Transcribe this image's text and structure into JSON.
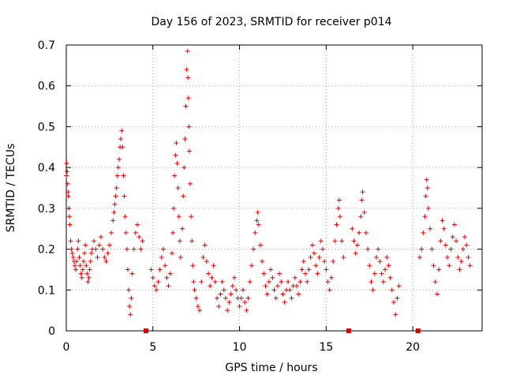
{
  "chart_data": {
    "type": "scatter",
    "title": "Day 156 of 2023, SRMTID for receiver p014",
    "xlabel": "GPS time / hours",
    "ylabel": "SRMTID / TECUs",
    "xlim": [
      0,
      24
    ],
    "ylim": [
      0,
      0.7
    ],
    "xticks": [
      0,
      5,
      10,
      15,
      20
    ],
    "yticks": [
      0,
      0.1,
      0.2,
      0.3,
      0.4,
      0.5,
      0.6,
      0.7
    ],
    "xtick_labels": [
      "0",
      "5",
      "10",
      "15",
      "20"
    ],
    "ytick_labels": [
      "0",
      "0.1",
      "0.2",
      "0.3",
      "0.4",
      "0.5",
      "0.6",
      "0.7"
    ],
    "grid": true,
    "marker": "+",
    "color": "#e00000",
    "marker_markers_on_axis": [
      4.6,
      16.3,
      20.3
    ],
    "series": [
      {
        "name": "SRMTID",
        "points": [
          [
            0.0,
            0.38
          ],
          [
            0.02,
            0.41
          ],
          [
            0.05,
            0.39
          ],
          [
            0.08,
            0.36
          ],
          [
            0.1,
            0.34
          ],
          [
            0.12,
            0.33
          ],
          [
            0.15,
            0.3
          ],
          [
            0.18,
            0.28
          ],
          [
            0.2,
            0.26
          ],
          [
            0.25,
            0.22
          ],
          [
            0.3,
            0.2
          ],
          [
            0.35,
            0.19
          ],
          [
            0.4,
            0.18
          ],
          [
            0.45,
            0.17
          ],
          [
            0.5,
            0.16
          ],
          [
            0.55,
            0.15
          ],
          [
            0.6,
            0.17
          ],
          [
            0.65,
            0.2
          ],
          [
            0.7,
            0.22
          ],
          [
            0.75,
            0.18
          ],
          [
            0.8,
            0.16
          ],
          [
            0.85,
            0.14
          ],
          [
            0.9,
            0.13
          ],
          [
            0.95,
            0.15
          ],
          [
            1.0,
            0.17
          ],
          [
            1.05,
            0.19
          ],
          [
            1.1,
            0.21
          ],
          [
            1.15,
            0.16
          ],
          [
            1.2,
            0.14
          ],
          [
            1.25,
            0.12
          ],
          [
            1.3,
            0.13
          ],
          [
            1.35,
            0.15
          ],
          [
            1.4,
            0.17
          ],
          [
            1.45,
            0.19
          ],
          [
            1.5,
            0.2
          ],
          [
            1.6,
            0.22
          ],
          [
            1.7,
            0.2
          ],
          [
            1.8,
            0.18
          ],
          [
            1.9,
            0.21
          ],
          [
            2.0,
            0.23
          ],
          [
            2.1,
            0.2
          ],
          [
            2.2,
            0.18
          ],
          [
            2.3,
            0.17
          ],
          [
            2.4,
            0.19
          ],
          [
            2.5,
            0.21
          ],
          [
            2.6,
            0.24
          ],
          [
            2.7,
            0.27
          ],
          [
            2.75,
            0.29
          ],
          [
            2.8,
            0.31
          ],
          [
            2.85,
            0.33
          ],
          [
            2.9,
            0.35
          ],
          [
            2.95,
            0.38
          ],
          [
            3.0,
            0.4
          ],
          [
            3.05,
            0.42
          ],
          [
            3.1,
            0.45
          ],
          [
            3.15,
            0.47
          ],
          [
            3.2,
            0.49
          ],
          [
            3.25,
            0.45
          ],
          [
            3.3,
            0.38
          ],
          [
            3.35,
            0.33
          ],
          [
            3.4,
            0.28
          ],
          [
            3.45,
            0.24
          ],
          [
            3.5,
            0.2
          ],
          [
            3.55,
            0.15
          ],
          [
            3.6,
            0.1
          ],
          [
            3.65,
            0.06
          ],
          [
            3.7,
            0.04
          ],
          [
            3.75,
            0.08
          ],
          [
            3.8,
            0.14
          ],
          [
            3.9,
            0.2
          ],
          [
            4.0,
            0.24
          ],
          [
            4.1,
            0.26
          ],
          [
            4.2,
            0.23
          ],
          [
            4.3,
            0.2
          ],
          [
            4.4,
            0.22
          ],
          [
            4.9,
            0.15
          ],
          [
            5.0,
            0.13
          ],
          [
            5.1,
            0.11
          ],
          [
            5.2,
            0.1
          ],
          [
            5.3,
            0.12
          ],
          [
            5.4,
            0.15
          ],
          [
            5.5,
            0.18
          ],
          [
            5.6,
            0.2
          ],
          [
            5.7,
            0.16
          ],
          [
            5.8,
            0.13
          ],
          [
            5.9,
            0.11
          ],
          [
            6.0,
            0.14
          ],
          [
            6.1,
            0.19
          ],
          [
            6.15,
            0.24
          ],
          [
            6.2,
            0.3
          ],
          [
            6.25,
            0.38
          ],
          [
            6.3,
            0.43
          ],
          [
            6.35,
            0.46
          ],
          [
            6.4,
            0.41
          ],
          [
            6.45,
            0.35
          ],
          [
            6.5,
            0.28
          ],
          [
            6.55,
            0.22
          ],
          [
            6.6,
            0.18
          ],
          [
            6.7,
            0.25
          ],
          [
            6.75,
            0.33
          ],
          [
            6.8,
            0.4
          ],
          [
            6.85,
            0.47
          ],
          [
            6.9,
            0.55
          ],
          [
            6.95,
            0.64
          ],
          [
            7.0,
            0.685
          ],
          [
            7.02,
            0.62
          ],
          [
            7.05,
            0.57
          ],
          [
            7.08,
            0.5
          ],
          [
            7.1,
            0.44
          ],
          [
            7.15,
            0.36
          ],
          [
            7.2,
            0.28
          ],
          [
            7.25,
            0.22
          ],
          [
            7.3,
            0.16
          ],
          [
            7.35,
            0.12
          ],
          [
            7.4,
            0.1
          ],
          [
            7.5,
            0.08
          ],
          [
            7.6,
            0.06
          ],
          [
            7.7,
            0.05
          ],
          [
            7.8,
            0.12
          ],
          [
            7.9,
            0.18
          ],
          [
            8.0,
            0.21
          ],
          [
            8.1,
            0.17
          ],
          [
            8.2,
            0.14
          ],
          [
            8.3,
            0.11
          ],
          [
            8.4,
            0.13
          ],
          [
            8.5,
            0.16
          ],
          [
            8.6,
            0.12
          ],
          [
            8.7,
            0.08
          ],
          [
            8.8,
            0.06
          ],
          [
            8.9,
            0.09
          ],
          [
            9.0,
            0.12
          ],
          [
            9.1,
            0.1
          ],
          [
            9.2,
            0.08
          ],
          [
            9.3,
            0.05
          ],
          [
            9.4,
            0.07
          ],
          [
            9.5,
            0.09
          ],
          [
            9.6,
            0.11
          ],
          [
            9.7,
            0.13
          ],
          [
            9.8,
            0.1
          ],
          [
            9.9,
            0.08
          ],
          [
            10.0,
            0.06
          ],
          [
            10.1,
            0.08
          ],
          [
            10.2,
            0.1
          ],
          [
            10.3,
            0.07
          ],
          [
            10.4,
            0.05
          ],
          [
            10.5,
            0.08
          ],
          [
            10.6,
            0.12
          ],
          [
            10.7,
            0.16
          ],
          [
            10.8,
            0.2
          ],
          [
            10.9,
            0.24
          ],
          [
            11.0,
            0.27
          ],
          [
            11.05,
            0.29
          ],
          [
            11.1,
            0.26
          ],
          [
            11.2,
            0.21
          ],
          [
            11.3,
            0.17
          ],
          [
            11.4,
            0.14
          ],
          [
            11.5,
            0.11
          ],
          [
            11.6,
            0.09
          ],
          [
            11.7,
            0.12
          ],
          [
            11.8,
            0.15
          ],
          [
            11.9,
            0.13
          ],
          [
            12.0,
            0.1
          ],
          [
            12.1,
            0.08
          ],
          [
            12.2,
            0.11
          ],
          [
            12.3,
            0.14
          ],
          [
            12.4,
            0.12
          ],
          [
            12.5,
            0.09
          ],
          [
            12.6,
            0.07
          ],
          [
            12.7,
            0.1
          ],
          [
            12.8,
            0.12
          ],
          [
            12.9,
            0.1
          ],
          [
            13.0,
            0.08
          ],
          [
            13.1,
            0.11
          ],
          [
            13.2,
            0.13
          ],
          [
            13.3,
            0.11
          ],
          [
            13.4,
            0.09
          ],
          [
            13.5,
            0.12
          ],
          [
            13.6,
            0.15
          ],
          [
            13.7,
            0.17
          ],
          [
            13.8,
            0.14
          ],
          [
            13.9,
            0.12
          ],
          [
            14.0,
            0.15
          ],
          [
            14.1,
            0.18
          ],
          [
            14.2,
            0.21
          ],
          [
            14.3,
            0.19
          ],
          [
            14.4,
            0.16
          ],
          [
            14.5,
            0.14
          ],
          [
            14.6,
            0.18
          ],
          [
            14.7,
            0.22
          ],
          [
            14.8,
            0.2
          ],
          [
            14.9,
            0.17
          ],
          [
            15.0,
            0.15
          ],
          [
            15.1,
            0.12
          ],
          [
            15.2,
            0.1
          ],
          [
            15.3,
            0.13
          ],
          [
            15.4,
            0.17
          ],
          [
            15.5,
            0.22
          ],
          [
            15.6,
            0.26
          ],
          [
            15.7,
            0.3
          ],
          [
            15.75,
            0.32
          ],
          [
            15.8,
            0.28
          ],
          [
            15.9,
            0.22
          ],
          [
            16.0,
            0.18
          ],
          [
            16.5,
            0.25
          ],
          [
            16.6,
            0.22
          ],
          [
            16.7,
            0.19
          ],
          [
            16.8,
            0.21
          ],
          [
            16.9,
            0.24
          ],
          [
            17.0,
            0.28
          ],
          [
            17.05,
            0.32
          ],
          [
            17.1,
            0.34
          ],
          [
            17.2,
            0.29
          ],
          [
            17.3,
            0.24
          ],
          [
            17.4,
            0.2
          ],
          [
            17.5,
            0.16
          ],
          [
            17.6,
            0.12
          ],
          [
            17.7,
            0.1
          ],
          [
            17.8,
            0.14
          ],
          [
            17.9,
            0.18
          ],
          [
            18.0,
            0.2
          ],
          [
            18.1,
            0.17
          ],
          [
            18.2,
            0.14
          ],
          [
            18.3,
            0.12
          ],
          [
            18.4,
            0.15
          ],
          [
            18.5,
            0.18
          ],
          [
            18.6,
            0.16
          ],
          [
            18.7,
            0.13
          ],
          [
            18.8,
            0.1
          ],
          [
            18.9,
            0.07
          ],
          [
            19.0,
            0.04
          ],
          [
            19.1,
            0.08
          ],
          [
            19.2,
            0.11
          ],
          [
            20.4,
            0.18
          ],
          [
            20.5,
            0.2
          ],
          [
            20.6,
            0.24
          ],
          [
            20.7,
            0.28
          ],
          [
            20.75,
            0.33
          ],
          [
            20.8,
            0.37
          ],
          [
            20.85,
            0.35
          ],
          [
            20.9,
            0.3
          ],
          [
            21.0,
            0.25
          ],
          [
            21.1,
            0.2
          ],
          [
            21.2,
            0.16
          ],
          [
            21.3,
            0.12
          ],
          [
            21.4,
            0.09
          ],
          [
            21.5,
            0.15
          ],
          [
            21.6,
            0.22
          ],
          [
            21.7,
            0.27
          ],
          [
            21.8,
            0.25
          ],
          [
            21.9,
            0.21
          ],
          [
            22.0,
            0.18
          ],
          [
            22.1,
            0.16
          ],
          [
            22.2,
            0.2
          ],
          [
            22.3,
            0.23
          ],
          [
            22.4,
            0.26
          ],
          [
            22.5,
            0.22
          ],
          [
            22.6,
            0.18
          ],
          [
            22.7,
            0.15
          ],
          [
            22.8,
            0.17
          ],
          [
            22.9,
            0.2
          ],
          [
            23.0,
            0.23
          ],
          [
            23.1,
            0.21
          ],
          [
            23.2,
            0.18
          ],
          [
            23.3,
            0.16
          ]
        ]
      }
    ]
  }
}
